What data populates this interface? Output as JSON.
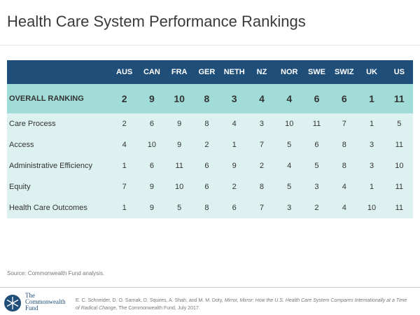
{
  "title": "Health Care System Performance Rankings",
  "table": {
    "columns": [
      "AUS",
      "CAN",
      "FRA",
      "GER",
      "NETH",
      "NZ",
      "NOR",
      "SWE",
      "SWIZ",
      "UK",
      "US"
    ],
    "rows": [
      {
        "label": "OVERALL RANKING",
        "values": [
          2,
          9,
          10,
          8,
          3,
          4,
          4,
          6,
          6,
          1,
          11
        ]
      },
      {
        "label": "Care Process",
        "values": [
          2,
          6,
          9,
          8,
          4,
          3,
          10,
          11,
          7,
          1,
          5
        ]
      },
      {
        "label": "Access",
        "values": [
          4,
          10,
          9,
          2,
          1,
          7,
          5,
          6,
          8,
          3,
          11
        ]
      },
      {
        "label": "Administrative Efficiency",
        "values": [
          1,
          6,
          11,
          6,
          9,
          2,
          4,
          5,
          8,
          3,
          10
        ]
      },
      {
        "label": "Equity",
        "values": [
          7,
          9,
          10,
          6,
          2,
          8,
          5,
          3,
          4,
          1,
          11
        ]
      },
      {
        "label": "Health Care Outcomes",
        "values": [
          1,
          9,
          5,
          8,
          6,
          7,
          3,
          2,
          4,
          10,
          11
        ]
      }
    ]
  },
  "source": "Source: Commonwealth Fund analysis.",
  "logo": {
    "line1": "The",
    "line2": "Commonwealth",
    "line3": "Fund"
  },
  "citation": {
    "authors": "E. C. Schneider, D. O. Sarnak, D. Squires, A. Shah, and M. M. Doty,",
    "work": "Mirror, Mirror: How the U.S. Health Care System Compares Internationally at a Time of Radical Change",
    "publisher": ", The Commonwealth Fund, July 2017."
  }
}
